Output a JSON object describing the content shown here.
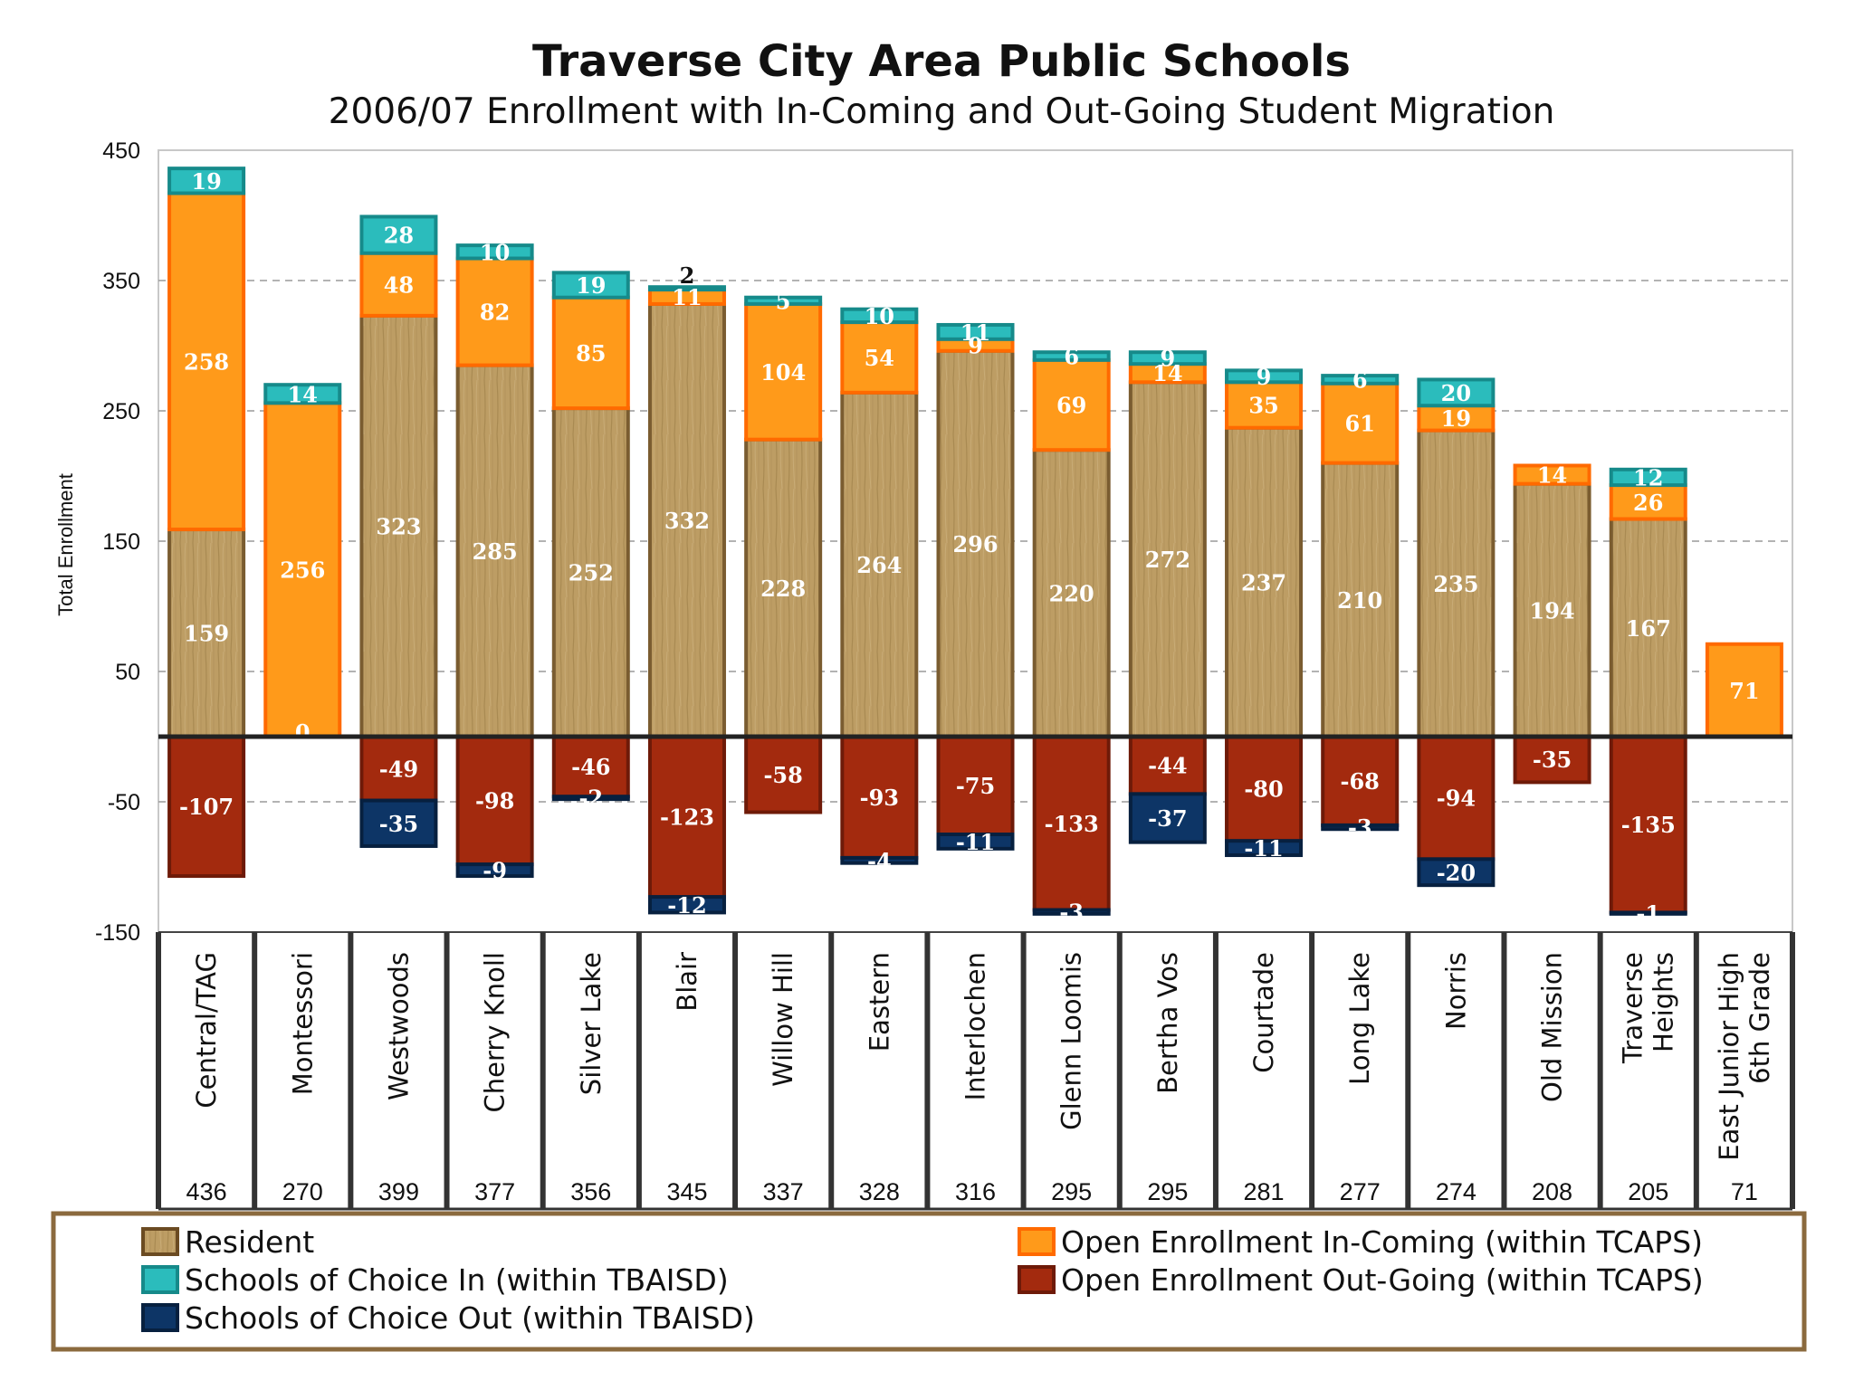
{
  "chart_data": {
    "type": "bar",
    "stacked": true,
    "title": "Traverse City Area Public Schools",
    "subtitle": "2006/07 Enrollment with In-Coming and Out-Going Student Migration",
    "ylabel": "Total Enrollment",
    "ylim": [
      -150,
      450
    ],
    "yticks": [
      450,
      350,
      250,
      150,
      50,
      -50,
      -150
    ],
    "grid": true,
    "categories": [
      "Central/TAG",
      "Montessori",
      "Westwoods",
      "Cherry Knoll",
      "Silver Lake",
      "Blair",
      "Willow Hill",
      "Eastern",
      "Interlochen",
      "Glenn Loomis",
      "Bertha Vos",
      "Courtade",
      "Long Lake",
      "Norris",
      "Old Mission",
      "Traverse Heights",
      "East Junior High 6th Grade"
    ],
    "category_lines": [
      [
        "Central/TAG"
      ],
      [
        "Montessori"
      ],
      [
        "Westwoods"
      ],
      [
        "Cherry Knoll"
      ],
      [
        "Silver Lake"
      ],
      [
        "Blair"
      ],
      [
        "Willow Hill"
      ],
      [
        "Eastern"
      ],
      [
        "Interlochen"
      ],
      [
        "Glenn Loomis"
      ],
      [
        "Bertha Vos"
      ],
      [
        "Courtade"
      ],
      [
        "Long Lake"
      ],
      [
        "Norris"
      ],
      [
        "Old Mission"
      ],
      [
        "Traverse",
        "Heights"
      ],
      [
        "East Junior High",
        "6th Grade"
      ]
    ],
    "totals": [
      436,
      270,
      399,
      377,
      356,
      345,
      337,
      328,
      316,
      295,
      295,
      281,
      277,
      274,
      208,
      205,
      71
    ],
    "series": [
      {
        "name": "Resident",
        "color": "#b99a62",
        "values": [
          159,
          0,
          323,
          285,
          252,
          332,
          228,
          264,
          296,
          220,
          272,
          237,
          210,
          235,
          194,
          167,
          null
        ]
      },
      {
        "name": "Open Enrollment In-Coming (within TCAPS)",
        "color": "#ff9a1a",
        "values": [
          258,
          256,
          48,
          82,
          85,
          11,
          104,
          54,
          9,
          69,
          14,
          35,
          61,
          19,
          14,
          26,
          71
        ]
      },
      {
        "name": "Schools of Choice In (within TBAISD)",
        "color": "#2bbcbc",
        "values": [
          19,
          14,
          28,
          10,
          19,
          2,
          5,
          10,
          11,
          6,
          9,
          9,
          6,
          20,
          null,
          12,
          null
        ]
      },
      {
        "name": "Open Enrollment Out-Going (within TCAPS)",
        "color": "#a32a0e",
        "values": [
          -107,
          null,
          -49,
          -98,
          -46,
          -123,
          -58,
          -93,
          -75,
          -133,
          -44,
          -80,
          -68,
          -94,
          -35,
          -135,
          null
        ]
      },
      {
        "name": "Schools of Choice Out (within TBAISD)",
        "color": "#0d3566",
        "values": [
          null,
          null,
          -35,
          -9,
          -2,
          -12,
          null,
          -4,
          -11,
          -3,
          -37,
          -11,
          -3,
          -20,
          null,
          -1,
          null
        ]
      }
    ],
    "legend": {
      "position": "bottom",
      "items": [
        {
          "label": "Resident",
          "color": "#b99a62"
        },
        {
          "label": "Open Enrollment In-Coming (within TCAPS)",
          "color": "#ff9a1a"
        },
        {
          "label": "Schools of Choice In (within TBAISD)",
          "color": "#2bbcbc"
        },
        {
          "label": "Open Enrollment Out-Going (within TCAPS)",
          "color": "#a32a0e"
        },
        {
          "label": "Schools of Choice Out (within TBAISD)",
          "color": "#0d3566"
        }
      ]
    }
  }
}
